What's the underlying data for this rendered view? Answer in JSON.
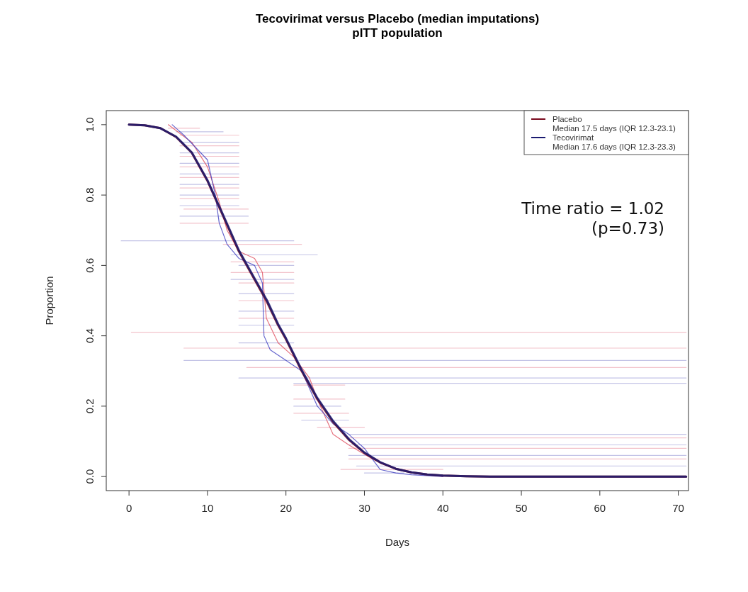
{
  "chart_data": {
    "type": "line",
    "title": "Tecovirimat versus Placebo (median imputations)",
    "subtitle": "pITT population",
    "xlabel": "Days",
    "ylabel": "Proportion",
    "xlim": [
      -2.9,
      71.3
    ],
    "xticks": [
      0,
      10,
      20,
      30,
      40,
      50,
      60,
      70
    ],
    "ylim": [
      -0.04,
      1.04
    ],
    "yticks": [
      {
        "value": 0,
        "label": "0.0"
      },
      {
        "value": 0.2,
        "label": "0.2"
      },
      {
        "value": 0.4,
        "label": "0.4"
      },
      {
        "value": 0.6,
        "label": "0.6"
      },
      {
        "value": 0.8,
        "label": "0.8"
      },
      {
        "value": 1,
        "label": "1.0"
      }
    ],
    "grid": false,
    "legend": "top right",
    "marker": "none",
    "annotations": [
      "Time ratio = 1.02",
      "(p=0.73)"
    ],
    "series": [
      {
        "color": "#f0b4be",
        "x": [
          5,
          9
        ],
        "values": [
          0.99,
          0.99
        ]
      },
      {
        "color": "#f0b4be",
        "x": [
          6.5,
          14
        ],
        "values": [
          0.97,
          0.97
        ]
      },
      {
        "color": "#f0b4be",
        "x": [
          6.5,
          14
        ],
        "values": [
          0.94,
          0.94
        ]
      },
      {
        "color": "#f0b4be",
        "x": [
          6.5,
          14
        ],
        "values": [
          0.91,
          0.91
        ]
      },
      {
        "color": "#f0b4be",
        "x": [
          6.5,
          14
        ],
        "values": [
          0.88,
          0.88
        ]
      },
      {
        "color": "#f0b4be",
        "x": [
          6.5,
          14
        ],
        "values": [
          0.85,
          0.85
        ]
      },
      {
        "color": "#f0b4be",
        "x": [
          6.5,
          14
        ],
        "values": [
          0.82,
          0.82
        ]
      },
      {
        "color": "#f0b4be",
        "x": [
          6.5,
          14
        ],
        "values": [
          0.79,
          0.79
        ]
      },
      {
        "color": "#f0b4be",
        "x": [
          7,
          15.2
        ],
        "values": [
          0.76,
          0.76
        ]
      },
      {
        "color": "#f0b4be",
        "x": [
          6.5,
          15.2
        ],
        "values": [
          0.72,
          0.72
        ]
      },
      {
        "color": "#f0b4be",
        "x": [
          12,
          22
        ],
        "values": [
          0.66,
          0.66
        ]
      },
      {
        "color": "#f0b4be",
        "x": [
          13,
          21
        ],
        "values": [
          0.61,
          0.61
        ]
      },
      {
        "color": "#f0b4be",
        "x": [
          13,
          21
        ],
        "values": [
          0.58,
          0.58
        ]
      },
      {
        "color": "#f0b4be",
        "x": [
          14,
          21
        ],
        "values": [
          0.55,
          0.55
        ]
      },
      {
        "color": "#f0b4be",
        "x": [
          14,
          21
        ],
        "values": [
          0.5,
          0.5
        ]
      },
      {
        "color": "#f0b4be",
        "x": [
          14,
          21
        ],
        "values": [
          0.45,
          0.45
        ]
      },
      {
        "color": "#f0b4be",
        "x": [
          0.3,
          71
        ],
        "values": [
          0.41,
          0.41
        ]
      },
      {
        "color": "#f0b4be",
        "x": [
          7,
          71
        ],
        "values": [
          0.365,
          0.365
        ]
      },
      {
        "color": "#f0b4be",
        "x": [
          15,
          71
        ],
        "values": [
          0.31,
          0.31
        ]
      },
      {
        "color": "#f0b4be",
        "x": [
          21,
          27.5
        ],
        "values": [
          0.26,
          0.26
        ]
      },
      {
        "color": "#f0b4be",
        "x": [
          21,
          27.5
        ],
        "values": [
          0.22,
          0.22
        ]
      },
      {
        "color": "#f0b4be",
        "x": [
          21,
          28
        ],
        "values": [
          0.18,
          0.18
        ]
      },
      {
        "color": "#f0b4be",
        "x": [
          24,
          30
        ],
        "values": [
          0.14,
          0.14
        ]
      },
      {
        "color": "#f0b4be",
        "x": [
          28,
          71
        ],
        "values": [
          0.11,
          0.11
        ]
      },
      {
        "color": "#f0b4be",
        "x": [
          28,
          71
        ],
        "values": [
          0.08,
          0.08
        ]
      },
      {
        "color": "#f0b4be",
        "x": [
          28,
          71
        ],
        "values": [
          0.05,
          0.05
        ]
      },
      {
        "color": "#f0b4be",
        "x": [
          27,
          40
        ],
        "values": [
          0.02,
          0.02
        ]
      },
      {
        "color": "#b4b4e0",
        "x": [
          6,
          12
        ],
        "values": [
          0.98,
          0.98
        ]
      },
      {
        "color": "#b4b4e0",
        "x": [
          6.5,
          14
        ],
        "values": [
          0.95,
          0.95
        ]
      },
      {
        "color": "#b4b4e0",
        "x": [
          6.5,
          14
        ],
        "values": [
          0.92,
          0.92
        ]
      },
      {
        "color": "#b4b4e0",
        "x": [
          6.5,
          14
        ],
        "values": [
          0.89,
          0.89
        ]
      },
      {
        "color": "#b4b4e0",
        "x": [
          6.5,
          14
        ],
        "values": [
          0.86,
          0.86
        ]
      },
      {
        "color": "#b4b4e0",
        "x": [
          6.5,
          14
        ],
        "values": [
          0.83,
          0.83
        ]
      },
      {
        "color": "#b4b4e0",
        "x": [
          6.5,
          14
        ],
        "values": [
          0.8,
          0.8
        ]
      },
      {
        "color": "#b4b4e0",
        "x": [
          6.5,
          14
        ],
        "values": [
          0.77,
          0.77
        ]
      },
      {
        "color": "#b4b4e0",
        "x": [
          6.5,
          15.2
        ],
        "values": [
          0.74,
          0.74
        ]
      },
      {
        "color": "#b4b4e0",
        "x": [
          -1,
          21
        ],
        "values": [
          0.67,
          0.67
        ]
      },
      {
        "color": "#b4b4e0",
        "x": [
          13,
          24
        ],
        "values": [
          0.63,
          0.63
        ]
      },
      {
        "color": "#b4b4e0",
        "x": [
          14,
          21
        ],
        "values": [
          0.6,
          0.6
        ]
      },
      {
        "color": "#b4b4e0",
        "x": [
          13,
          21
        ],
        "values": [
          0.56,
          0.56
        ]
      },
      {
        "color": "#b4b4e0",
        "x": [
          14,
          21
        ],
        "values": [
          0.52,
          0.52
        ]
      },
      {
        "color": "#b4b4e0",
        "x": [
          14,
          21
        ],
        "values": [
          0.47,
          0.47
        ]
      },
      {
        "color": "#b4b4e0",
        "x": [
          14,
          21
        ],
        "values": [
          0.43,
          0.43
        ]
      },
      {
        "color": "#b4b4e0",
        "x": [
          14,
          21
        ],
        "values": [
          0.38,
          0.38
        ]
      },
      {
        "color": "#b4b4e0",
        "x": [
          7,
          71
        ],
        "values": [
          0.33,
          0.33
        ]
      },
      {
        "color": "#b4b4e0",
        "x": [
          14,
          71
        ],
        "values": [
          0.28,
          0.28
        ]
      },
      {
        "color": "#b4b4e0",
        "x": [
          21,
          71
        ],
        "values": [
          0.265,
          0.265
        ]
      },
      {
        "color": "#b4b4e0",
        "x": [
          21,
          27
        ],
        "values": [
          0.2,
          0.2
        ]
      },
      {
        "color": "#b4b4e0",
        "x": [
          22,
          28
        ],
        "values": [
          0.16,
          0.16
        ]
      },
      {
        "color": "#b4b4e0",
        "x": [
          28,
          71
        ],
        "values": [
          0.12,
          0.12
        ]
      },
      {
        "color": "#b4b4e0",
        "x": [
          28,
          71
        ],
        "values": [
          0.09,
          0.09
        ]
      },
      {
        "color": "#b4b4e0",
        "x": [
          28,
          71
        ],
        "values": [
          0.06,
          0.06
        ]
      },
      {
        "color": "#b4b4e0",
        "x": [
          29,
          71
        ],
        "values": [
          0.03,
          0.03
        ]
      },
      {
        "color": "#b4b4e0",
        "x": [
          30,
          35
        ],
        "values": [
          0.01,
          0.01
        ]
      },
      {
        "color": "#e05060",
        "x": [
          5,
          8,
          10,
          11.5,
          12.5,
          14,
          16,
          17,
          17.5,
          19,
          21,
          23,
          24,
          25,
          26,
          28,
          31,
          33,
          36,
          40
        ],
        "values": [
          1,
          0.95,
          0.88,
          0.78,
          0.7,
          0.64,
          0.62,
          0.58,
          0.45,
          0.38,
          0.34,
          0.28,
          0.22,
          0.17,
          0.12,
          0.09,
          0.05,
          0.03,
          0.01,
          0
        ]
      },
      {
        "color": "#4040c0",
        "x": [
          5.5,
          7,
          10,
          11,
          11.5,
          12.5,
          14,
          16,
          17,
          17.2,
          18,
          20,
          22,
          23,
          24,
          26,
          28,
          30,
          31,
          32,
          34,
          36,
          40
        ],
        "values": [
          1,
          0.97,
          0.9,
          0.8,
          0.72,
          0.66,
          0.62,
          0.6,
          0.55,
          0.4,
          0.36,
          0.33,
          0.3,
          0.25,
          0.2,
          0.15,
          0.12,
          0.08,
          0.05,
          0.02,
          0.01,
          0.005,
          0
        ]
      },
      {
        "name": "Placebo\nMedian 17.5 days (IQR 12.3-23.1)",
        "color": "#7a0a1e",
        "x": [
          0,
          2,
          4,
          6,
          8,
          10,
          12,
          14,
          16,
          17.5,
          19,
          20,
          22,
          24,
          26,
          28,
          30,
          32,
          34,
          36,
          38,
          40,
          43,
          46,
          50,
          60,
          71
        ],
        "values": [
          1,
          0.998,
          0.99,
          0.965,
          0.92,
          0.84,
          0.74,
          0.64,
          0.56,
          0.5,
          0.43,
          0.39,
          0.3,
          0.22,
          0.155,
          0.105,
          0.067,
          0.04,
          0.022,
          0.012,
          0.006,
          0.003,
          0.001,
          0,
          0,
          0,
          0
        ]
      },
      {
        "name": "Tecovirimat\nMedian 17.6 days (IQR 12.3-23.3)",
        "color": "#1a1a70",
        "x": [
          0,
          2,
          4,
          6,
          8,
          10,
          12,
          14,
          16,
          17.6,
          19,
          20,
          22,
          24,
          26,
          28,
          30,
          32,
          34,
          36,
          38,
          40,
          43,
          46,
          50,
          60,
          71
        ],
        "values": [
          1,
          0.998,
          0.99,
          0.966,
          0.921,
          0.842,
          0.743,
          0.643,
          0.563,
          0.5,
          0.433,
          0.393,
          0.303,
          0.223,
          0.158,
          0.107,
          0.068,
          0.041,
          0.022,
          0.012,
          0.006,
          0.003,
          0.001,
          0,
          0,
          0,
          0
        ]
      }
    ]
  }
}
